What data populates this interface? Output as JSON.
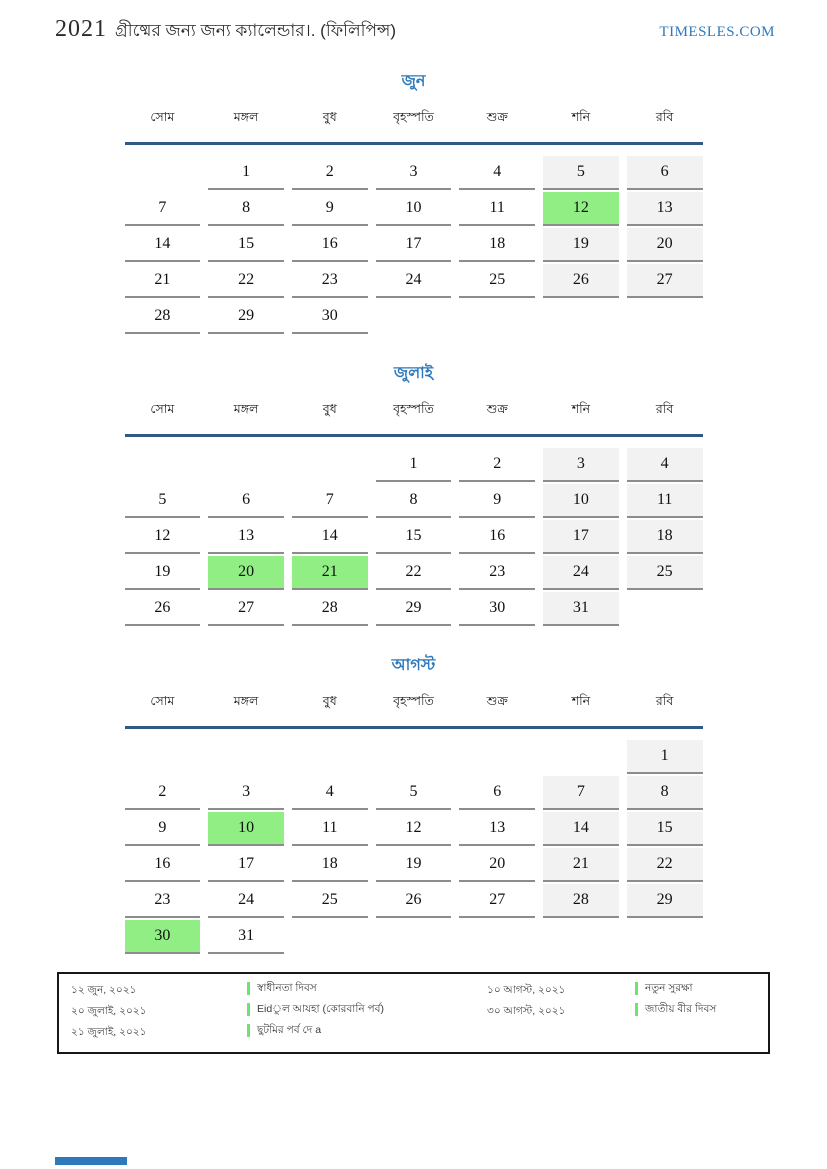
{
  "header": {
    "year": "2021",
    "title": "গ্রীষ্মের জন্য জন্য ক্যালেন্ডার।. (ফিলিপিন্স)",
    "site": "TIMESLES.COM"
  },
  "weekdays": [
    "সোম",
    "মঙ্গল",
    "বুধ",
    "বৃহস্পতি",
    "শুক্র",
    "শনি",
    "রবি"
  ],
  "months": [
    {
      "name": "জুন",
      "weeks": [
        [
          null,
          1,
          2,
          3,
          4,
          5,
          6
        ],
        [
          7,
          8,
          9,
          10,
          11,
          12,
          13
        ],
        [
          14,
          15,
          16,
          17,
          18,
          19,
          20
        ],
        [
          21,
          22,
          23,
          24,
          25,
          26,
          27
        ],
        [
          28,
          29,
          30,
          null,
          null,
          null,
          null
        ]
      ],
      "highlights": [
        12
      ]
    },
    {
      "name": "জুলাই",
      "weeks": [
        [
          null,
          null,
          null,
          1,
          2,
          3,
          4
        ],
        [
          5,
          6,
          7,
          8,
          9,
          10,
          11
        ],
        [
          12,
          13,
          14,
          15,
          16,
          17,
          18
        ],
        [
          19,
          20,
          21,
          22,
          23,
          24,
          25
        ],
        [
          26,
          27,
          28,
          29,
          30,
          31,
          null
        ]
      ],
      "highlights": [
        20,
        21
      ]
    },
    {
      "name": "আগস্ট",
      "weeks": [
        [
          null,
          null,
          null,
          null,
          null,
          null,
          1
        ],
        [
          2,
          3,
          4,
          5,
          6,
          7,
          8
        ],
        [
          9,
          10,
          11,
          12,
          13,
          14,
          15
        ],
        [
          16,
          17,
          18,
          19,
          20,
          21,
          22
        ],
        [
          23,
          24,
          25,
          26,
          27,
          28,
          29
        ],
        [
          30,
          31,
          null,
          null,
          null,
          null,
          null
        ]
      ],
      "highlights": [
        10,
        30
      ]
    }
  ],
  "legend": {
    "left": [
      {
        "date": "১২ জুন, ২০২১",
        "label": "স্বাধীনতা দিবস"
      },
      {
        "date": "২০ জুলাই, ২০২১",
        "label": "Eidুল আযহা (কোরবানি পর্ব)"
      },
      {
        "date": "২১ জুলাই, ২০২১",
        "label": "ছুটমির পর্ব দে a"
      }
    ],
    "right": [
      {
        "date": "১০ আগস্ট, ২০২১",
        "label": "নতুন সুরক্ষা"
      },
      {
        "date": "৩০ আগস্ট, ২০২১",
        "label": "জাতীয় বীর দিবস"
      }
    ]
  },
  "colors": {
    "accent_blue": "#2e79ba",
    "header_rule": "#2f5a83",
    "weekend_bg": "#f2f2f2",
    "highlight_green": "#90ee84",
    "legend_marker": "#6fe26f",
    "cell_underline": "#8c8c8c"
  }
}
